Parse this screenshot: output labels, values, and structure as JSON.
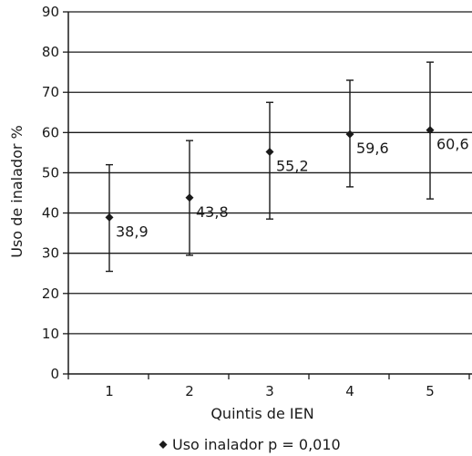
{
  "chart_data": {
    "type": "scatter",
    "title": "",
    "xlabel": "Quintis de IEN",
    "ylabel": "Uso de inalador %",
    "categories": [
      "1",
      "2",
      "3",
      "4",
      "5"
    ],
    "ylim": [
      0,
      90
    ],
    "yticks": [
      "0",
      "10",
      "20",
      "30",
      "40",
      "50",
      "60",
      "70",
      "80",
      "90"
    ],
    "grid": true,
    "legend_position": "bottom-center",
    "series": [
      {
        "name": "Uso inalador p = 0,010",
        "values": [
          38.9,
          43.8,
          55.2,
          59.6,
          60.6
        ],
        "display_values": [
          "38,9",
          "43,8",
          "55,2",
          "59,6",
          "60,6"
        ],
        "error_low": [
          25.5,
          29.5,
          38.5,
          46.5,
          43.5
        ],
        "error_high": [
          52.0,
          58.0,
          67.5,
          73.0,
          77.5
        ]
      }
    ],
    "colors": {
      "marker": "#1a1a1a",
      "grid": "#1a1a1a",
      "axis": "#1a1a1a"
    }
  }
}
